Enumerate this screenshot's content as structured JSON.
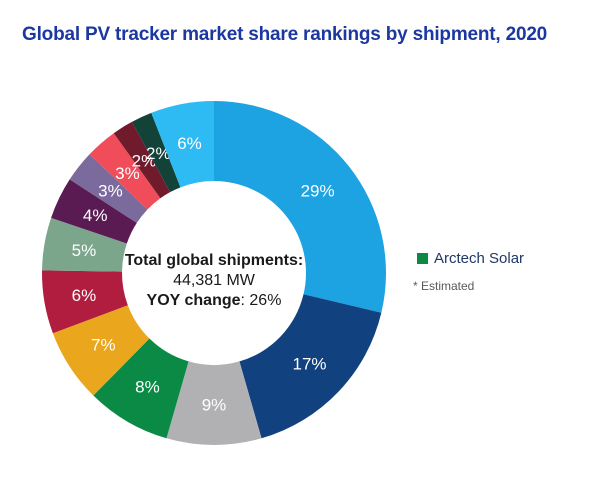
{
  "title": {
    "text": "Global PV tracker market share rankings by shipment, 2020",
    "color": "#1c38a0"
  },
  "chart_data": {
    "type": "pie",
    "subtype": "donut",
    "title": "Global PV tracker market share rankings by shipment, 2020",
    "start_angle_deg": 0,
    "direction": "clockwise",
    "inner_radius_ratio": 0.535,
    "label_color": "#ffffff",
    "segments": [
      {
        "label": "29%",
        "value": 29,
        "color": "#1da2e2"
      },
      {
        "label": "17%",
        "value": 17,
        "color": "#12417f"
      },
      {
        "label": "9%",
        "value": 9,
        "color": "#b1b1b3"
      },
      {
        "label": "8%",
        "value": 8,
        "color": "#0b8a45",
        "legend": "Arctech Solar"
      },
      {
        "label": "7%",
        "value": 7,
        "color": "#eaa61c"
      },
      {
        "label": "6%",
        "value": 6,
        "color": "#b01d3e"
      },
      {
        "label": "5%",
        "value": 5,
        "color": "#7ca68b"
      },
      {
        "label": "4%",
        "value": 4,
        "color": "#5a1b53"
      },
      {
        "label": "3%",
        "value": 3,
        "color": "#7b6b9d"
      },
      {
        "label": "3%",
        "value": 3,
        "color": "#f04c59"
      },
      {
        "label": "2%",
        "value": 2,
        "color": "#701b2c"
      },
      {
        "label": "2%",
        "value": 2,
        "color": "#134238"
      },
      {
        "label": "6%",
        "value": 6,
        "color": "#2ebbf3"
      }
    ],
    "center_text": {
      "line1": "Total global shipments:",
      "line2": "44,381 MW",
      "yoy_label": "YOY change",
      "yoy_value": ": 26%"
    },
    "legend": {
      "items": [
        {
          "label": "Arctech Solar",
          "swatch_color": "#0c8a45"
        }
      ],
      "text_color": "#1f3864",
      "position": "right"
    },
    "footnote": {
      "text": "* Estimated",
      "color": "#595959"
    }
  }
}
